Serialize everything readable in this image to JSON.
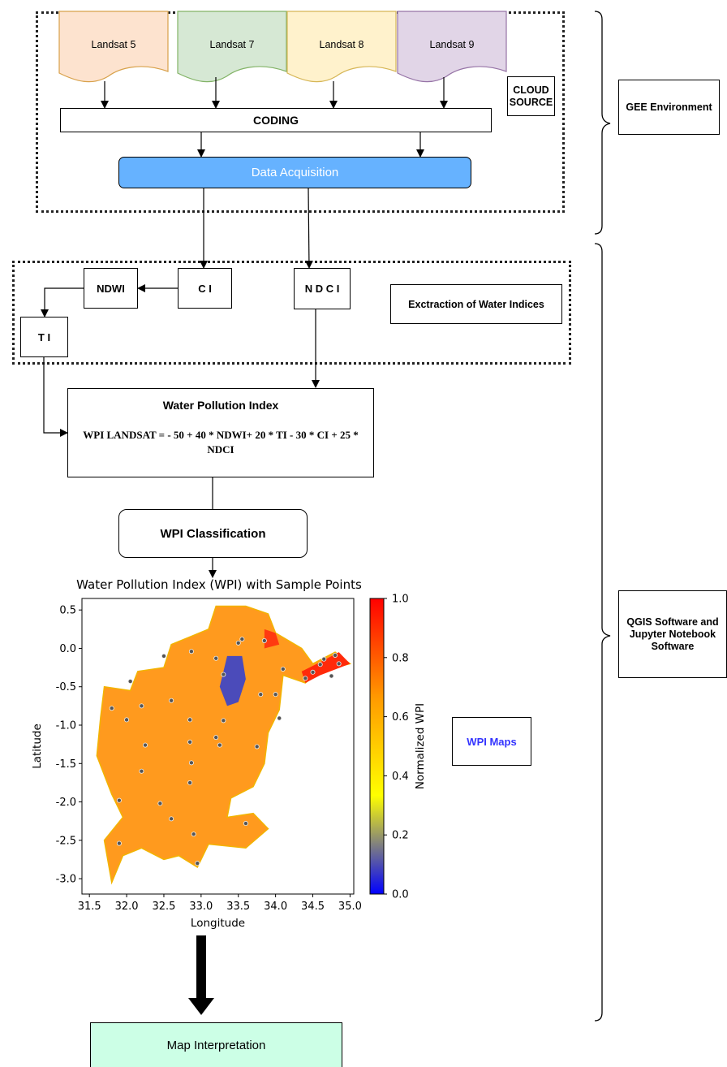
{
  "sources": [
    {
      "label": "Landsat 5",
      "fill": "#fde3cf",
      "stroke": "#d8a14a"
    },
    {
      "label": "Landsat 7",
      "fill": "#d6e8d4",
      "stroke": "#82b366"
    },
    {
      "label": "Landsat 8",
      "fill": "#fff2cc",
      "stroke": "#d6b656"
    },
    {
      "label": "Landsat 9",
      "fill": "#e1d5e7",
      "stroke": "#9673a6"
    }
  ],
  "cloud_source": "CLOUD SOURCE",
  "coding": "CODING",
  "data_acquisition": "Data Acquisition",
  "gee_environment": "GEE Environment",
  "indices": {
    "ndwi": "NDWI",
    "ci": "C I",
    "ndci": "N D C I",
    "ti": "T I"
  },
  "extraction_label": "Exctraction of Water Indices",
  "wpi": {
    "title": "Water Pollution Index",
    "formula": "WPI LANDSAT = - 50 + 40 * NDWI+ 20 * TI - 30 * CI + 25 * NDCI"
  },
  "wpi_classification": "WPI Classification",
  "qgis_label": "QGIS Software and Jupyter Notebook Software",
  "wpi_maps": "WPI Maps",
  "map_interpretation": "Map Interpretation",
  "colors": {
    "acquisition": "#66b2ff",
    "interpretation": "#ccffe6",
    "wpi_maps_text": "#3333ff"
  },
  "chart_data": {
    "type": "heatmap",
    "title": "Water Pollution Index (WPI) with Sample Points",
    "xlabel": "Longitude",
    "ylabel": "Latitude",
    "colorbar_label": "Normalized WPI",
    "xlim": [
      31.4,
      35.05
    ],
    "ylim": [
      -3.2,
      0.65
    ],
    "x_ticks": [
      "31.5",
      "32.0",
      "32.5",
      "33.0",
      "33.5",
      "34.0",
      "34.5",
      "35.0"
    ],
    "y_ticks": [
      "0.5",
      "0.0",
      "-0.5",
      "-1.0",
      "-1.5",
      "-2.0",
      "-2.5",
      "-3.0"
    ],
    "colorbar_ticks": [
      "1.0",
      "0.8",
      "0.6",
      "0.4",
      "0.2",
      "0.0"
    ],
    "colormap": [
      "#0000ff",
      "#ffff00",
      "#ff9900",
      "#ff0000"
    ],
    "sample_points": [
      [
        32.05,
        -0.43
      ],
      [
        31.8,
        -0.78
      ],
      [
        32.0,
        -0.93
      ],
      [
        32.2,
        -0.75
      ],
      [
        32.5,
        -0.1
      ],
      [
        32.6,
        -0.68
      ],
      [
        32.85,
        -0.93
      ],
      [
        32.85,
        -1.22
      ],
      [
        32.25,
        -1.26
      ],
      [
        32.2,
        -1.6
      ],
      [
        32.87,
        -1.49
      ],
      [
        32.85,
        -1.75
      ],
      [
        31.9,
        -1.98
      ],
      [
        32.45,
        -2.02
      ],
      [
        32.6,
        -2.22
      ],
      [
        32.9,
        -2.42
      ],
      [
        31.9,
        -2.54
      ],
      [
        32.95,
        -2.8
      ],
      [
        32.87,
        -0.04
      ],
      [
        33.2,
        -0.13
      ],
      [
        33.3,
        -0.34
      ],
      [
        33.5,
        0.07
      ],
      [
        33.25,
        -1.26
      ],
      [
        33.3,
        -0.94
      ],
      [
        33.2,
        -1.16
      ],
      [
        33.75,
        -1.28
      ],
      [
        33.8,
        -0.6
      ],
      [
        34.0,
        -0.6
      ],
      [
        34.05,
        -0.91
      ],
      [
        34.1,
        -0.27
      ],
      [
        34.4,
        -0.39
      ],
      [
        34.5,
        -0.31
      ],
      [
        34.6,
        -0.21
      ],
      [
        34.65,
        -0.14
      ],
      [
        34.8,
        -0.09
      ],
      [
        34.75,
        -0.36
      ],
      [
        34.85,
        -0.2
      ],
      [
        33.6,
        -2.28
      ],
      [
        33.55,
        0.12
      ],
      [
        33.85,
        0.1
      ]
    ]
  }
}
